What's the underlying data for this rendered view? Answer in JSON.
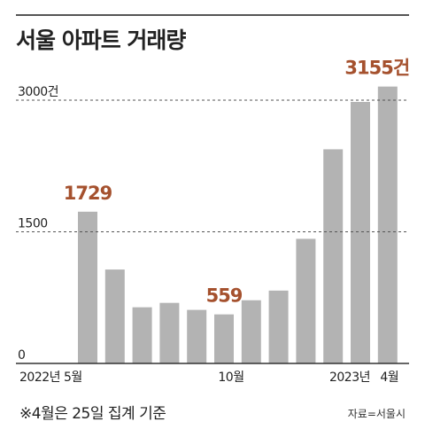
{
  "header": {
    "title": "서울 아파트 거래량"
  },
  "footer": {
    "note": "※4월은 25일 집계 기준",
    "source": "자료=서울시"
  },
  "chart_data": {
    "type": "bar",
    "title": "서울 아파트 거래량",
    "categories": [
      "2022-05",
      "2022-06",
      "2022-07",
      "2022-08",
      "2022-09",
      "2022-10",
      "2022-11",
      "2022-12",
      "2023-01",
      "2023-02",
      "2023-03",
      "2023-04"
    ],
    "values": [
      1729,
      1070,
      640,
      690,
      610,
      559,
      720,
      830,
      1420,
      2440,
      2980,
      3155
    ],
    "x_tick_labels": [
      {
        "index": 0,
        "text": "2022년 5월"
      },
      {
        "index": 5,
        "text": "10월"
      },
      {
        "index": 10,
        "text": "2023년"
      },
      {
        "index": 11,
        "text": "4월"
      }
    ],
    "y_ticks": [
      {
        "value": 0,
        "text": "0"
      },
      {
        "value": 1500,
        "text": "1500"
      },
      {
        "value": 3000,
        "text": "3000건"
      }
    ],
    "data_labels": [
      {
        "index": 0,
        "text": "1729"
      },
      {
        "index": 5,
        "text": "559"
      },
      {
        "index": 11,
        "text": "3155건"
      }
    ],
    "ylim": [
      0,
      3300
    ],
    "grid": true,
    "colors": {
      "bar": "#b3b3b3",
      "label": "#a5512e",
      "grid": "#555555",
      "axis": "#333333"
    }
  }
}
